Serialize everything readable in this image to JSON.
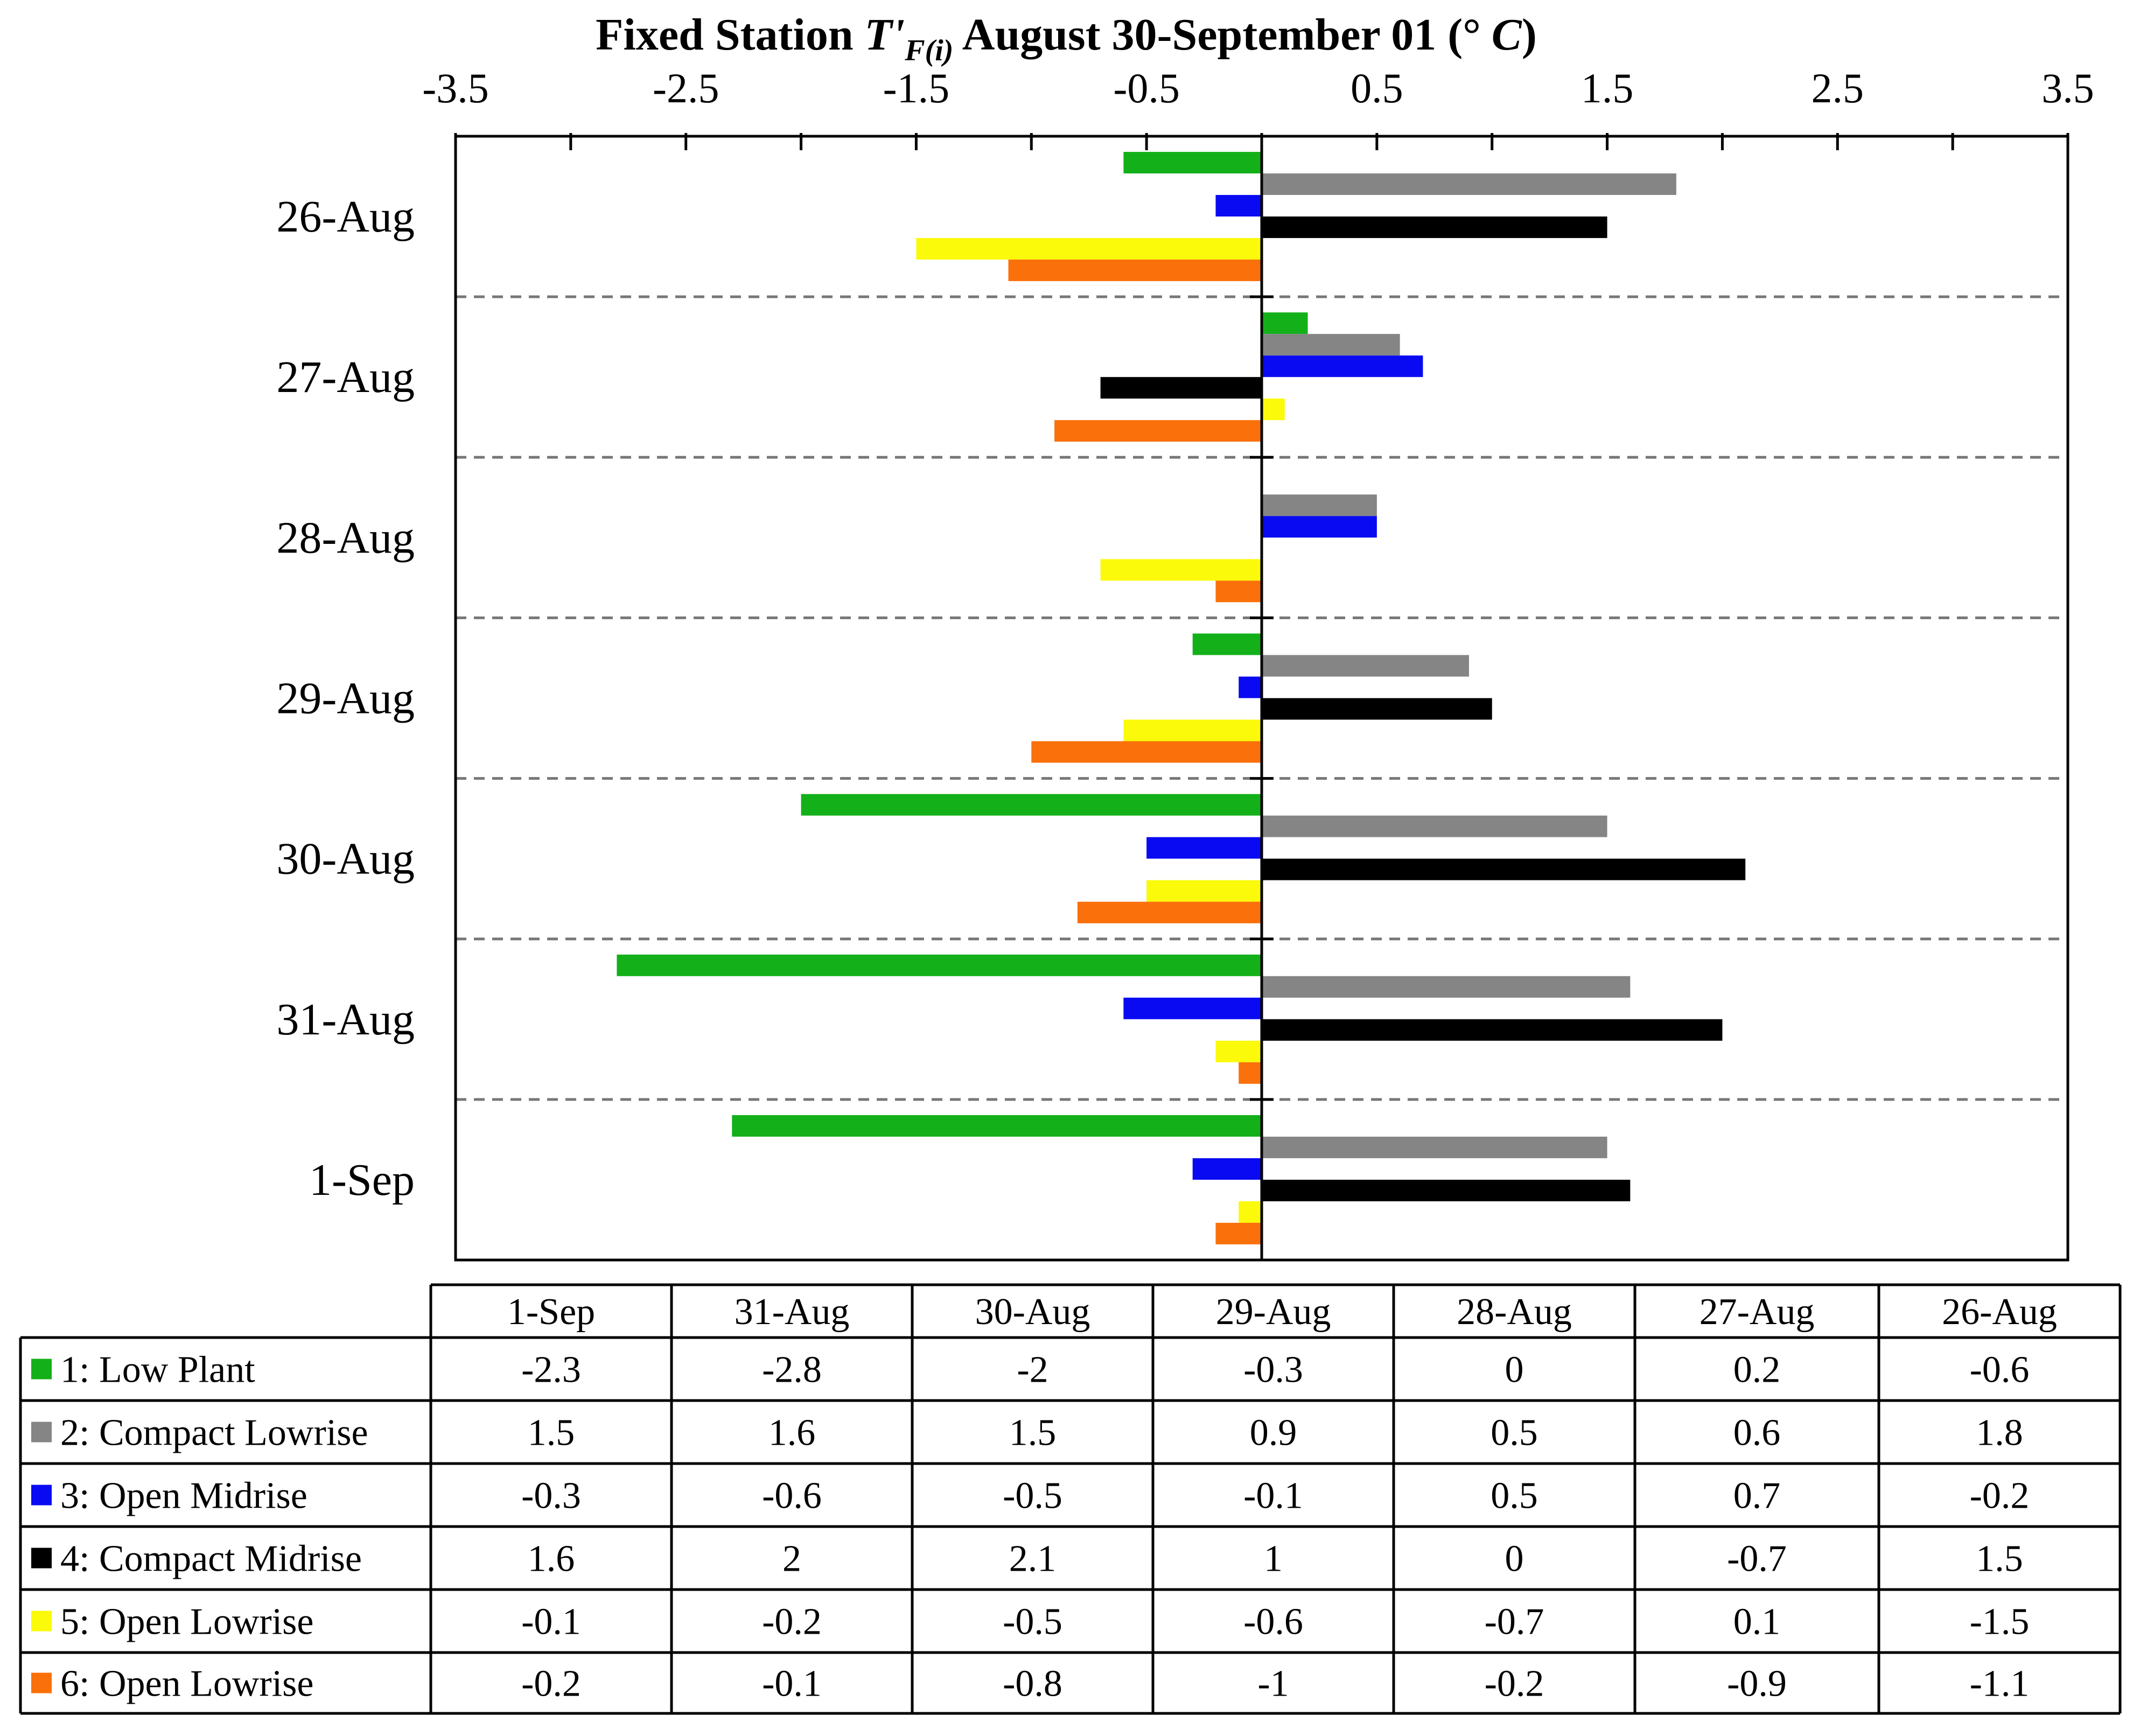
{
  "chart_data": {
    "type": "bar",
    "orientation": "horizontal",
    "title": {
      "prefix": "Fixed Station ",
      "symbol": "T'",
      "subscript": "F(i)",
      "suffix": " August 30-September 01 (°",
      "unit": "C",
      "close": ")"
    },
    "xlim": [
      -3.5,
      3.5
    ],
    "tick_values": [
      -3.5,
      -3,
      -2.5,
      -2,
      -1.5,
      -1,
      -0.5,
      0,
      0.5,
      1,
      1.5,
      2,
      2.5,
      3,
      3.5
    ],
    "tick_labels": [
      "-3.5",
      "-2.5",
      "-1.5",
      "-0.5",
      "0.5",
      "1.5",
      "2.5",
      "3.5"
    ],
    "tick_label_values": [
      -3.5,
      -2.5,
      -1.5,
      -0.5,
      0.5,
      1.5,
      2.5,
      3.5
    ],
    "categories": [
      "26-Aug",
      "27-Aug",
      "28-Aug",
      "29-Aug",
      "30-Aug",
      "31-Aug",
      "1-Sep"
    ],
    "table_columns": [
      "1-Sep",
      "31-Aug",
      "30-Aug",
      "29-Aug",
      "28-Aug",
      "27-Aug",
      "26-Aug"
    ],
    "series": [
      {
        "name": "1: Low Plant",
        "color": "#13B01A",
        "values": [
          -0.6,
          0.2,
          0,
          -0.3,
          -2,
          -2.8,
          -2.3
        ]
      },
      {
        "name": "2: Compact Lowrise",
        "color": "#858585",
        "values": [
          1.8,
          0.6,
          0.5,
          0.9,
          1.5,
          1.6,
          1.5
        ]
      },
      {
        "name": "3: Open Midrise",
        "color": "#0A0AF2",
        "values": [
          -0.2,
          0.7,
          0.5,
          -0.1,
          -0.5,
          -0.6,
          -0.3
        ]
      },
      {
        "name": "4: Compact Midrise",
        "color": "#000000",
        "values": [
          1.5,
          -0.7,
          0,
          1,
          2.1,
          2,
          1.6
        ]
      },
      {
        "name": "5: Open Lowrise",
        "color": "#FAFA0A",
        "values": [
          -1.5,
          0.1,
          -0.7,
          -0.6,
          -0.5,
          -0.2,
          -0.1
        ]
      },
      {
        "name": "6: Open Lowrise",
        "color": "#FA700A",
        "values": [
          -1.1,
          -0.9,
          -0.2,
          -1,
          -0.8,
          -0.1,
          -0.2
        ]
      }
    ],
    "table_rows": [
      [
        "-2.3",
        "-2.8",
        "-2",
        "-0.3",
        "0",
        "0.2",
        "-0.6"
      ],
      [
        "1.5",
        "1.6",
        "1.5",
        "0.9",
        "0.5",
        "0.6",
        "1.8"
      ],
      [
        "-0.3",
        "-0.6",
        "-0.5",
        "-0.1",
        "0.5",
        "0.7",
        "-0.2"
      ],
      [
        "1.6",
        "2",
        "2.1",
        "1",
        "0",
        "-0.7",
        "1.5"
      ],
      [
        "-0.1",
        "-0.2",
        "-0.5",
        "-0.6",
        "-0.7",
        "0.1",
        "-1.5"
      ],
      [
        "-0.2",
        "-0.1",
        "-0.8",
        "-1",
        "-0.2",
        "-0.9",
        "-1.1"
      ]
    ],
    "gridlines": "dashed separators between categories"
  }
}
